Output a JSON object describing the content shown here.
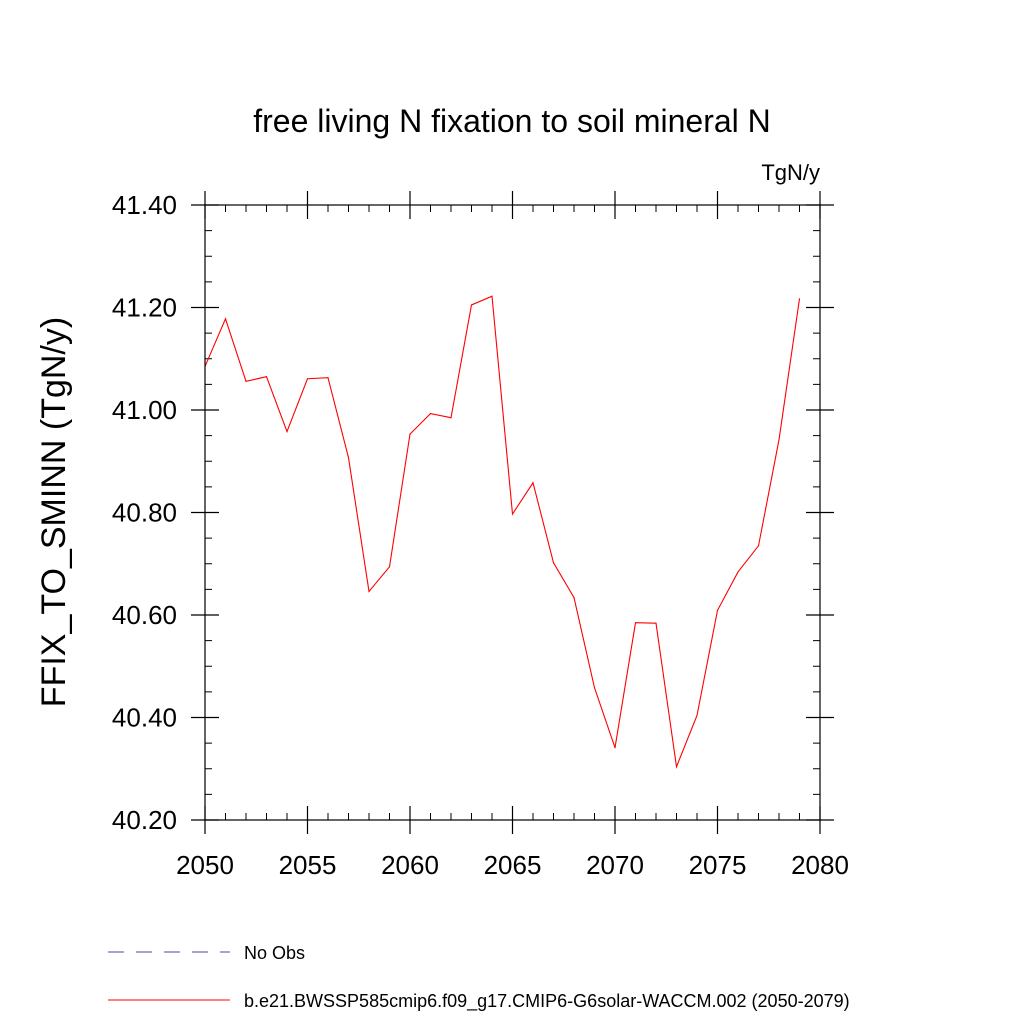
{
  "chart_data": {
    "type": "line",
    "title": "free living N fixation to soil mineral N",
    "units": "TgN/y",
    "xlabel": "",
    "ylabel": "FFIX_TO_SMINN  (TgN/y)",
    "xlim": [
      2050,
      2080
    ],
    "ylim": [
      40.2,
      41.4
    ],
    "x_ticks": [
      2050,
      2055,
      2060,
      2065,
      2070,
      2075,
      2080
    ],
    "x_tick_labels": [
      "2050",
      "2055",
      "2060",
      "2065",
      "2070",
      "2075",
      "2080"
    ],
    "y_ticks": [
      40.2,
      40.4,
      40.6,
      40.8,
      41.0,
      41.2,
      41.4
    ],
    "y_tick_labels": [
      "40.20",
      "40.40",
      "40.60",
      "40.80",
      "41.00",
      "41.20",
      "41.40"
    ],
    "x_minor_step": 1,
    "y_minor_step": 0.05,
    "series": [
      {
        "name": "b.e21.BWSSP585cmip6.f09_g17.CMIP6-G6solar-WACCM.002 (2050-2079)",
        "color": "#ff0000",
        "style": "solid",
        "x": [
          2050,
          2051,
          2052,
          2053,
          2054,
          2055,
          2056,
          2057,
          2058,
          2059,
          2060,
          2061,
          2062,
          2063,
          2064,
          2065,
          2066,
          2067,
          2068,
          2069,
          2070,
          2071,
          2072,
          2073,
          2074,
          2075,
          2076,
          2077,
          2078,
          2079
        ],
        "values": [
          41.085,
          41.178,
          41.056,
          41.065,
          40.958,
          41.061,
          41.063,
          40.907,
          40.646,
          40.694,
          40.953,
          40.993,
          40.985,
          41.205,
          41.222,
          40.797,
          40.858,
          40.702,
          40.634,
          40.458,
          40.341,
          40.585,
          40.584,
          40.304,
          40.404,
          40.609,
          40.684,
          40.735,
          40.942,
          41.217
        ]
      }
    ],
    "legend": [
      {
        "label": "No Obs",
        "color": "#7b68b0",
        "style": "dashed"
      },
      {
        "label": "b.e21.BWSSP585cmip6.f09_g17.CMIP6-G6solar-WACCM.002 (2050-2079)",
        "color": "#ff0000",
        "style": "solid"
      }
    ]
  }
}
